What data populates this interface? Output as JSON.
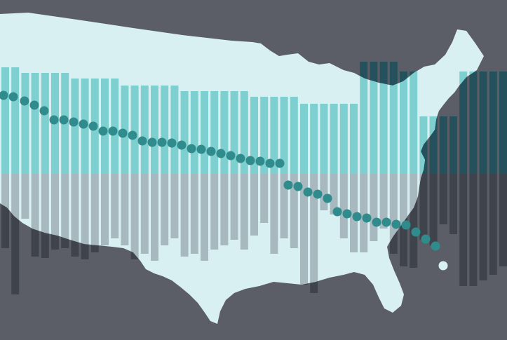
{
  "colors": {
    "background": "#5b5e67",
    "map_fill": "#d9f0f2",
    "bar_above_on_map": "#7ecfcf",
    "bar_below_on_map": "#a7b8bf",
    "bar_above_off_map": "#24515b",
    "bar_below_off_map": "#3f434c",
    "dot_color": "#2f8b8c",
    "dot_last": "#d9f0f2"
  },
  "graphic": {
    "description_key": "us-map-with-bars-and-dot-trend",
    "bar_count": 49,
    "dot_count": 45
  }
}
